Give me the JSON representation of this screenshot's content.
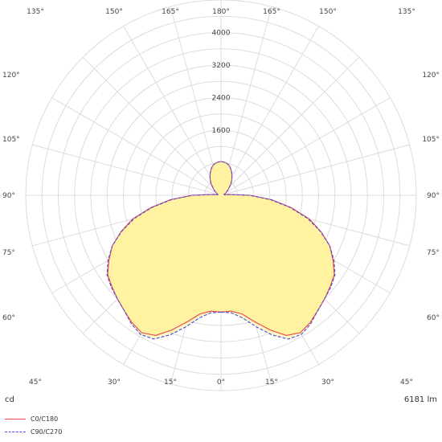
{
  "chart_data": {
    "type": "polar",
    "radial_ticks": [
      1600,
      2400,
      3200,
      4000
    ],
    "radial_tick_labels": [
      "1600",
      "2400",
      "3200",
      "4000"
    ],
    "rmax": 4800,
    "angle_labels": {
      "bottom": [
        "45°",
        "30°",
        "15°",
        "0°",
        "15°",
        "30°",
        "45°"
      ],
      "left": [
        "60°",
        "75°",
        "90°",
        "105°",
        "120°"
      ],
      "right": [
        "60°",
        "75°",
        "90°",
        "105°",
        "120°"
      ],
      "top": [
        "135°",
        "150°",
        "165°",
        "180°",
        "165°",
        "150°",
        "135°"
      ]
    },
    "unit_label": "cd",
    "lumen_label": "6181 lm",
    "grid": true,
    "fill_color": "#fff2a0",
    "series": [
      {
        "name": "C0/C180",
        "color": "#e8474c",
        "style": "solid",
        "angles": [
          0,
          5,
          10,
          15,
          20,
          25,
          30,
          35,
          40,
          45,
          50,
          55,
          60,
          65,
          70,
          75,
          80,
          85,
          90,
          95,
          100,
          105,
          110,
          115,
          120,
          125,
          130,
          135,
          140,
          145,
          150,
          155,
          160,
          165,
          170,
          175,
          180
        ],
        "values": [
          2870,
          2860,
          2960,
          3220,
          3520,
          3800,
          3900,
          3820,
          3700,
          3600,
          3500,
          3400,
          3180,
          2950,
          2620,
          2250,
          1760,
          1260,
          720,
          220,
          80,
          80,
          100,
          120,
          150,
          190,
          240,
          300,
          380,
          460,
          540,
          620,
          700,
          760,
          800,
          820,
          830
        ]
      },
      {
        "name": "C90/C270",
        "color": "#4a4adf",
        "style": "dashed",
        "angles": [
          0,
          5,
          10,
          15,
          20,
          25,
          30,
          35,
          40,
          45,
          50,
          55,
          60,
          65,
          70,
          75,
          80,
          85,
          90,
          95,
          100,
          105,
          110,
          115,
          120,
          125,
          130,
          135,
          140,
          145,
          150,
          155,
          160,
          165,
          170,
          175,
          180
        ],
        "values": [
          2870,
          2900,
          3060,
          3350,
          3650,
          3900,
          3950,
          3850,
          3700,
          3600,
          3520,
          3420,
          3210,
          2950,
          2600,
          2210,
          1720,
          1220,
          700,
          210,
          80,
          80,
          100,
          120,
          150,
          190,
          240,
          300,
          380,
          460,
          540,
          620,
          700,
          760,
          800,
          820,
          830
        ]
      }
    ]
  }
}
